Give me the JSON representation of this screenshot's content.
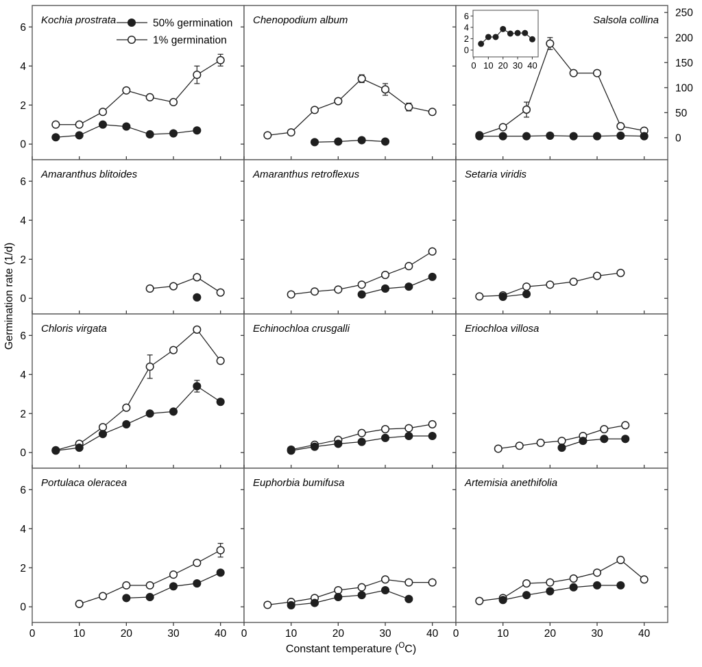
{
  "figure": {
    "background": "#ffffff",
    "ink_color": "#1f1f1f",
    "border_color": "#595959",
    "tick_color": "#3a3a3a"
  },
  "chart_data": {
    "type": "line",
    "title": "",
    "ylabel": "Germination rate (1/d)",
    "xlabel_pre": "Constant temperature (",
    "xlabel_sup": "O",
    "xlabel_post": "C)",
    "x_domain": [
      0,
      45
    ],
    "y_domain": [
      -0.8,
      7.1
    ],
    "x_ticks": [
      0,
      10,
      20,
      30,
      40
    ],
    "y_ticks": [
      0,
      2,
      4,
      6
    ],
    "grid": "off",
    "legend_position": "inside-first-panel",
    "legend": [
      {
        "marker": "filled",
        "label": "50% germination"
      },
      {
        "marker": "open",
        "label": "1% germination"
      }
    ],
    "right_axis": {
      "domain": [
        -44,
        264
      ],
      "ticks": [
        0,
        50,
        100,
        150,
        200,
        250
      ],
      "applies_to": "salsola-collina"
    },
    "panels": [
      {
        "id": "kochia-prostrata",
        "title": "Kochia prostrata",
        "row": 0,
        "col": 0,
        "series": {
          "open": {
            "x": [
              5,
              10,
              15,
              20,
              25,
              30,
              35,
              40
            ],
            "y": [
              1.0,
              1.0,
              1.65,
              2.75,
              2.4,
              2.15,
              3.55,
              4.3
            ],
            "err": [
              0,
              0,
              0,
              0,
              0,
              0,
              0.45,
              0.3
            ]
          },
          "filled": {
            "x": [
              5,
              10,
              15,
              20,
              25,
              30,
              35
            ],
            "y": [
              0.35,
              0.45,
              1.0,
              0.9,
              0.5,
              0.55,
              0.7
            ]
          }
        }
      },
      {
        "id": "chenopodium-album",
        "title": "Chenopodium album",
        "row": 0,
        "col": 1,
        "series": {
          "open": {
            "x": [
              5,
              10,
              15,
              20,
              25,
              30,
              35,
              40
            ],
            "y": [
              0.45,
              0.6,
              1.75,
              2.2,
              3.35,
              2.8,
              1.9,
              1.65
            ],
            "err": [
              0,
              0,
              0,
              0,
              0.2,
              0.3,
              0.2,
              0
            ]
          },
          "filled": {
            "x": [
              15,
              20,
              25,
              30
            ],
            "y": [
              0.1,
              0.13,
              0.2,
              0.13
            ]
          }
        }
      },
      {
        "id": "salsola-collina",
        "title": "Salsola collina",
        "row": 0,
        "col": 2,
        "axis": "right",
        "title_align": "right",
        "series": {
          "open": {
            "x": [
              5,
              10,
              15,
              20,
              25,
              30,
              35,
              40
            ],
            "y": [
              5,
              21,
              56,
              188,
              129,
              129,
              23,
              14
            ],
            "err": [
              0,
              0,
              15,
              12,
              0,
              0,
              0,
              0
            ]
          },
          "filled": {
            "x": [
              5,
              10,
              15,
              20,
              25,
              30,
              35,
              40
            ],
            "y": [
              3,
              3,
              3,
              4,
              3,
              3,
              4,
              3
            ]
          }
        },
        "inset": {
          "x": [
            5,
            10,
            15,
            20,
            25,
            30,
            35,
            40
          ],
          "y": [
            1.1,
            2.3,
            2.3,
            3.7,
            2.9,
            3.0,
            3.0,
            1.9
          ],
          "x_ticks": [
            0,
            10,
            20,
            30,
            40
          ],
          "y_ticks": [
            0,
            2,
            4,
            6
          ],
          "x_domain": [
            0,
            44
          ],
          "y_domain": [
            -1.2,
            7.0
          ]
        }
      },
      {
        "id": "amaranthus-blitoides",
        "title": "Amaranthus blitoides",
        "row": 1,
        "col": 0,
        "series": {
          "open": {
            "x": [
              25,
              30,
              35,
              40
            ],
            "y": [
              0.5,
              0.62,
              1.08,
              0.3
            ]
          },
          "filled": {
            "x": [
              35
            ],
            "y": [
              0.05
            ]
          }
        }
      },
      {
        "id": "amaranthus-retroflexus",
        "title": "Amaranthus retroflexus",
        "row": 1,
        "col": 1,
        "series": {
          "open": {
            "x": [
              10,
              15,
              20,
              25,
              30,
              35,
              40
            ],
            "y": [
              0.2,
              0.35,
              0.45,
              0.7,
              1.2,
              1.65,
              2.4
            ]
          },
          "filled": {
            "x": [
              25,
              30,
              35,
              40
            ],
            "y": [
              0.2,
              0.5,
              0.6,
              1.1
            ]
          }
        }
      },
      {
        "id": "setaria-viridis",
        "title": "Setaria viridis",
        "row": 1,
        "col": 2,
        "series": {
          "open": {
            "x": [
              5,
              10,
              15,
              20,
              25,
              30,
              35
            ],
            "y": [
              0.1,
              0.15,
              0.6,
              0.7,
              0.85,
              1.15,
              1.3
            ]
          },
          "filled": {
            "x": [
              10,
              15
            ],
            "y": [
              0.08,
              0.22
            ]
          }
        }
      },
      {
        "id": "chloris-virgata",
        "title": "Chloris virgata",
        "row": 2,
        "col": 0,
        "series": {
          "open": {
            "x": [
              5,
              10,
              15,
              20,
              25,
              30,
              35,
              40
            ],
            "y": [
              0.12,
              0.45,
              1.3,
              2.3,
              4.4,
              5.25,
              6.3,
              4.7
            ],
            "err": [
              0,
              0,
              0,
              0,
              0.6,
              0,
              0,
              0
            ]
          },
          "filled": {
            "x": [
              5,
              10,
              15,
              20,
              25,
              30,
              35,
              40
            ],
            "y": [
              0.1,
              0.25,
              0.95,
              1.45,
              2.0,
              2.1,
              3.4,
              2.6
            ],
            "err": [
              0,
              0,
              0,
              0,
              0,
              0,
              0.3,
              0
            ]
          }
        }
      },
      {
        "id": "echinochloa-crusgalli",
        "title": "Echinochloa crusgalli",
        "row": 2,
        "col": 1,
        "series": {
          "open": {
            "x": [
              10,
              15,
              20,
              25,
              30,
              35,
              40
            ],
            "y": [
              0.15,
              0.4,
              0.65,
              1.0,
              1.2,
              1.25,
              1.45
            ]
          },
          "filled": {
            "x": [
              10,
              15,
              20,
              25,
              30,
              35,
              40
            ],
            "y": [
              0.1,
              0.3,
              0.45,
              0.55,
              0.75,
              0.85,
              0.85
            ]
          }
        }
      },
      {
        "id": "eriochloa-villosa",
        "title": "Eriochloa villosa",
        "row": 2,
        "col": 2,
        "series": {
          "open": {
            "x": [
              9,
              13.5,
              18,
              22.5,
              27,
              31.5,
              36
            ],
            "y": [
              0.2,
              0.35,
              0.5,
              0.6,
              0.85,
              1.2,
              1.4
            ]
          },
          "filled": {
            "x": [
              22.5,
              27,
              31.5,
              36
            ],
            "y": [
              0.25,
              0.6,
              0.7,
              0.7
            ]
          }
        }
      },
      {
        "id": "portulaca-oleracea",
        "title": "Portulaca oleracea",
        "row": 3,
        "col": 0,
        "series": {
          "open": {
            "x": [
              10,
              15,
              20,
              25,
              30,
              35,
              40
            ],
            "y": [
              0.15,
              0.55,
              1.1,
              1.1,
              1.65,
              2.25,
              2.9
            ],
            "err": [
              0,
              0,
              0,
              0,
              0,
              0,
              0.35
            ]
          },
          "filled": {
            "x": [
              20,
              25,
              30,
              35,
              40
            ],
            "y": [
              0.45,
              0.5,
              1.05,
              1.2,
              1.75
            ]
          }
        }
      },
      {
        "id": "euphorbia-bumifusa",
        "title": "Euphorbia bumifusa",
        "row": 3,
        "col": 1,
        "series": {
          "open": {
            "x": [
              5,
              10,
              15,
              20,
              25,
              30,
              35,
              40
            ],
            "y": [
              0.1,
              0.25,
              0.45,
              0.85,
              1.0,
              1.4,
              1.25,
              1.25
            ]
          },
          "filled": {
            "x": [
              10,
              15,
              20,
              25,
              30,
              35
            ],
            "y": [
              0.08,
              0.2,
              0.5,
              0.6,
              0.85,
              0.4
            ]
          }
        }
      },
      {
        "id": "artemisia-anethifolia",
        "title": "Artemisia anethifolia",
        "row": 3,
        "col": 2,
        "series": {
          "open": {
            "x": [
              5,
              10,
              15,
              20,
              25,
              30,
              35,
              40
            ],
            "y": [
              0.3,
              0.45,
              1.2,
              1.25,
              1.45,
              1.75,
              2.4,
              1.4
            ]
          },
          "filled": {
            "x": [
              10,
              15,
              20,
              25,
              30,
              35
            ],
            "y": [
              0.35,
              0.6,
              0.8,
              1.0,
              1.1,
              1.1
            ]
          }
        }
      }
    ]
  }
}
